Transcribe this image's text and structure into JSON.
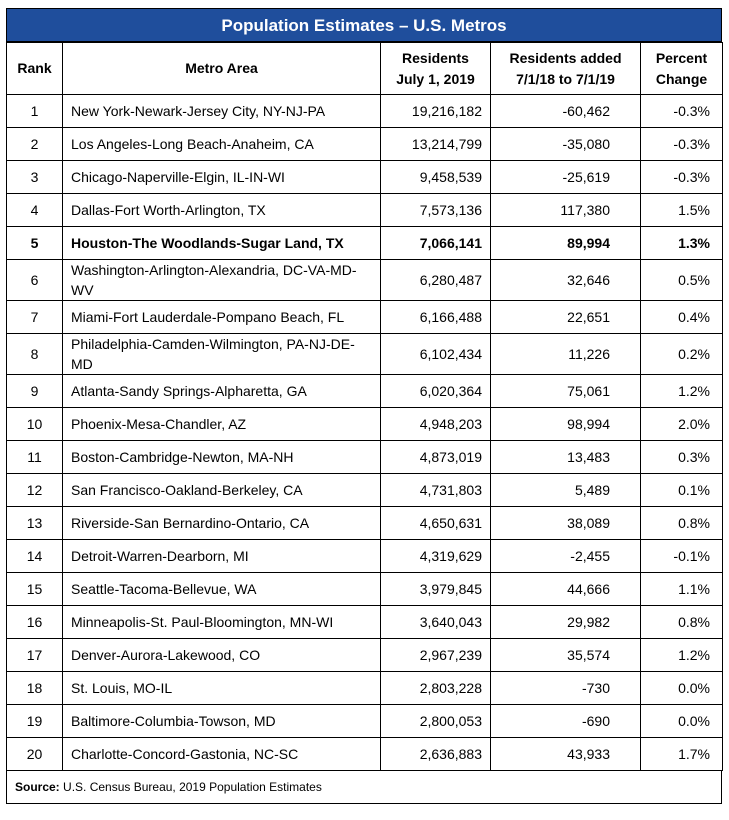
{
  "title": "Population Estimates – U.S. Metros",
  "table": {
    "header": [
      [
        "Rank"
      ],
      [
        "Metro Area"
      ],
      [
        "Residents",
        "July 1, 2019"
      ],
      [
        "Residents added",
        "7/1/18 to 7/1/19"
      ],
      [
        "Percent",
        "Change"
      ]
    ],
    "rows": [
      [
        "1",
        "New York-Newark-Jersey City, NY-NJ-PA",
        "19,216,182",
        "-60,462",
        "-0.3%"
      ],
      [
        "2",
        "Los Angeles-Long Beach-Anaheim, CA",
        "13,214,799",
        "-35,080",
        "-0.3%"
      ],
      [
        "3",
        "Chicago-Naperville-Elgin, IL-IN-WI",
        "9,458,539",
        "-25,619",
        "-0.3%"
      ],
      [
        "4",
        "Dallas-Fort Worth-Arlington, TX",
        "7,573,136",
        "117,380",
        "1.5%"
      ],
      [
        "5",
        "Houston-The Woodlands-Sugar Land, TX",
        "7,066,141",
        "89,994",
        "1.3%"
      ],
      [
        "6",
        "Washington-Arlington-Alexandria, DC-VA-MD-WV",
        "6,280,487",
        "32,646",
        "0.5%"
      ],
      [
        "7",
        "Miami-Fort Lauderdale-Pompano Beach, FL",
        "6,166,488",
        "22,651",
        "0.4%"
      ],
      [
        "8",
        "Philadelphia-Camden-Wilmington, PA-NJ-DE-MD",
        "6,102,434",
        "11,226",
        "0.2%"
      ],
      [
        "9",
        "Atlanta-Sandy Springs-Alpharetta, GA",
        "6,020,364",
        "75,061",
        "1.2%"
      ],
      [
        "10",
        "Phoenix-Mesa-Chandler, AZ",
        "4,948,203",
        "98,994",
        "2.0%"
      ],
      [
        "11",
        "Boston-Cambridge-Newton, MA-NH",
        "4,873,019",
        "13,483",
        "0.3%"
      ],
      [
        "12",
        "San Francisco-Oakland-Berkeley, CA",
        "4,731,803",
        "5,489",
        "0.1%"
      ],
      [
        "13",
        "Riverside-San Bernardino-Ontario, CA",
        "4,650,631",
        "38,089",
        "0.8%"
      ],
      [
        "14",
        "Detroit-Warren-Dearborn, MI",
        "4,319,629",
        "-2,455",
        "-0.1%"
      ],
      [
        "15",
        "Seattle-Tacoma-Bellevue, WA",
        "3,979,845",
        "44,666",
        "1.1%"
      ],
      [
        "16",
        "Minneapolis-St. Paul-Bloomington, MN-WI",
        "3,640,043",
        "29,982",
        "0.8%"
      ],
      [
        "17",
        "Denver-Aurora-Lakewood, CO",
        "2,967,239",
        "35,574",
        "1.2%"
      ],
      [
        "18",
        "St. Louis, MO-IL",
        "2,803,228",
        "-730",
        "0.0%"
      ],
      [
        "19",
        "Baltimore-Columbia-Towson, MD",
        "2,800,053",
        "-690",
        "0.0%"
      ],
      [
        "20",
        "Charlotte-Concord-Gastonia, NC-SC",
        "2,636,883",
        "43,933",
        "1.7%"
      ]
    ]
  },
  "source": {
    "label": "Source:",
    "text": "U.S. Census Bureau, 2019 Population Estimates"
  }
}
